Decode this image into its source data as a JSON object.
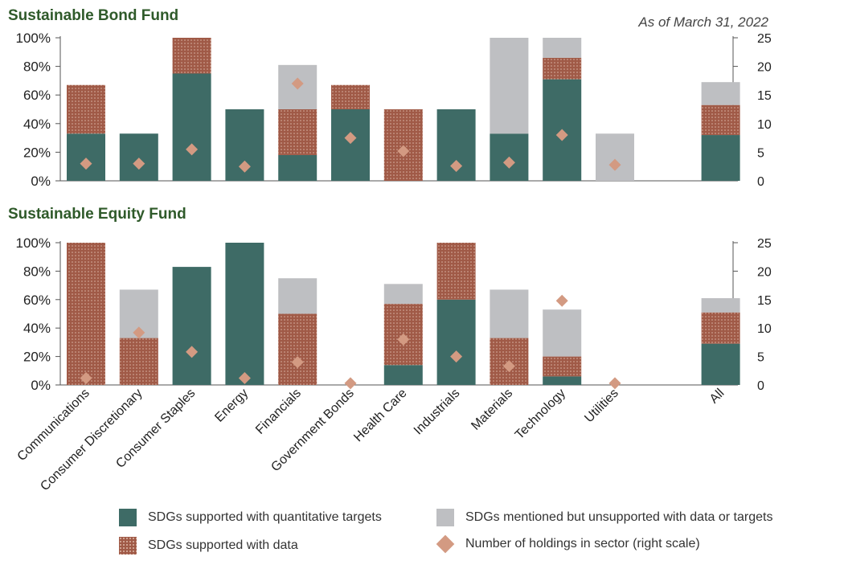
{
  "date_note": "As of March 31, 2022",
  "colors": {
    "quant": "#3e6b66",
    "data": "#a05a47",
    "data_dots": "#d9b3a3",
    "unsupported": "#bebfc2",
    "diamond": "#d39a82",
    "title": "#2f5a2a",
    "axis": "#555555"
  },
  "legend": {
    "quant": "SDGs supported with quantitative targets",
    "data": "SDGs supported with data",
    "unsupported": "SDGs mentioned but unsupported with data or targets",
    "holdings": "Number of holdings in sector (right scale)"
  },
  "chart_data": [
    {
      "type": "bar",
      "stacked": true,
      "title": "Sustainable Bond Fund",
      "categories": [
        "Communications",
        "Consumer Discretionary",
        "Consumer Staples",
        "Energy",
        "Financials",
        "Government Bonds",
        "Health Care",
        "Industrials",
        "Materials",
        "Technology",
        "Utilities",
        "",
        "All"
      ],
      "series": [
        {
          "name": "SDGs supported with quantitative targets",
          "values": [
            33,
            33,
            75,
            50,
            18,
            50,
            0,
            50,
            33,
            71,
            0,
            null,
            32
          ]
        },
        {
          "name": "SDGs supported with data",
          "values": [
            34,
            0,
            25,
            0,
            32,
            17,
            50,
            0,
            0,
            15,
            0,
            null,
            21
          ]
        },
        {
          "name": "SDGs mentioned but unsupported with data or targets",
          "values": [
            0,
            0,
            0,
            0,
            31,
            0,
            0,
            0,
            67,
            14,
            33,
            null,
            16
          ]
        }
      ],
      "holdings": [
        3,
        3,
        5.5,
        2.5,
        17,
        7.5,
        5.2,
        2.6,
        3.2,
        8,
        2.8,
        null,
        null
      ],
      "ylim": [
        0,
        100
      ],
      "yticks": [
        "0%",
        "20%",
        "40%",
        "60%",
        "80%",
        "100%"
      ],
      "y2lim": [
        0,
        25
      ],
      "y2ticks": [
        "0",
        "5",
        "10",
        "15",
        "20",
        "25"
      ]
    },
    {
      "type": "bar",
      "stacked": true,
      "title": "Sustainable Equity Fund",
      "categories": [
        "Communications",
        "Consumer Discretionary",
        "Consumer Staples",
        "Energy",
        "Financials",
        "Government Bonds",
        "Health Care",
        "Industrials",
        "Materials",
        "Technology",
        "Utilities",
        "",
        "All"
      ],
      "series": [
        {
          "name": "SDGs supported with quantitative targets",
          "values": [
            0,
            0,
            83,
            100,
            0,
            0,
            14,
            60,
            0,
            6,
            0,
            null,
            29
          ]
        },
        {
          "name": "SDGs supported with data",
          "values": [
            100,
            33,
            0,
            0,
            50,
            0,
            43,
            40,
            33,
            14,
            0,
            null,
            22
          ]
        },
        {
          "name": "SDGs mentioned but unsupported with data or targets",
          "values": [
            0,
            34,
            0,
            0,
            25,
            0,
            14,
            0,
            34,
            33,
            0,
            null,
            10
          ]
        }
      ],
      "holdings": [
        1.2,
        9.2,
        5.8,
        1.2,
        4,
        0.3,
        8,
        5,
        3.3,
        14.8,
        0.3,
        null,
        null
      ],
      "ylim": [
        0,
        100
      ],
      "yticks": [
        "0%",
        "20%",
        "40%",
        "60%",
        "80%",
        "100%"
      ],
      "y2lim": [
        0,
        25
      ],
      "y2ticks": [
        "0",
        "5",
        "10",
        "15",
        "20",
        "25"
      ]
    }
  ]
}
